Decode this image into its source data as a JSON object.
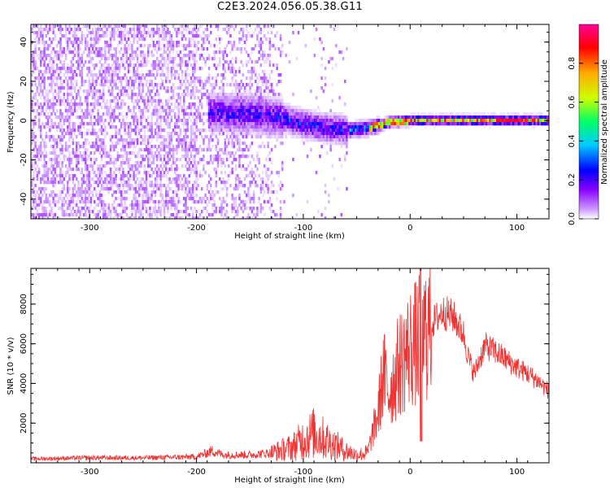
{
  "title": "C2E3.2024.056.05.38.G11",
  "chart_data": [
    {
      "type": "heatmap",
      "xlabel": "Height of straight line (km)",
      "ylabel": "Frequency (Hz)",
      "xlim": [
        -355,
        130
      ],
      "ylim": [
        -50,
        49
      ],
      "xticks": [
        -300,
        -200,
        -100,
        0,
        100
      ],
      "yticks": [
        -40,
        -20,
        0,
        20,
        40
      ],
      "colorbar": {
        "label": "Normalized spectral amplitude",
        "range": [
          0,
          1
        ],
        "ticks": [
          0.0,
          0.2,
          0.4,
          0.6,
          0.8
        ],
        "colormap": [
          "#ffffff",
          "#cc99ff",
          "#8800ff",
          "#0000ff",
          "#00ccff",
          "#00ff66",
          "#ccff00",
          "#ffaa00",
          "#ff0000",
          "#ff0099"
        ]
      },
      "band_center_hz": [
        {
          "x": -180,
          "y": 5
        },
        {
          "x": -140,
          "y": 4
        },
        {
          "x": -120,
          "y": 2
        },
        {
          "x": -100,
          "y": -1
        },
        {
          "x": -80,
          "y": -3
        },
        {
          "x": -60,
          "y": -4
        },
        {
          "x": -40,
          "y": -3
        },
        {
          "x": -20,
          "y": 0
        },
        {
          "x": 0,
          "y": 1
        },
        {
          "x": 50,
          "y": 1
        },
        {
          "x": 100,
          "y": 1
        },
        {
          "x": 130,
          "y": 1
        }
      ]
    },
    {
      "type": "line",
      "xlabel": "Height of straight line (km)",
      "ylabel": "SNR (10 * v/v)",
      "xlim": [
        -355,
        130
      ],
      "ylim": [
        0,
        9800
      ],
      "xticks": [
        -300,
        -200,
        -100,
        0,
        100
      ],
      "yticks": [
        2000,
        4000,
        6000,
        8000
      ],
      "color": "#ee3333",
      "series": [
        {
          "x": [
            -355,
            -300,
            -250,
            -200,
            -185,
            -175,
            -150,
            -130,
            -110,
            -100,
            -90,
            -80,
            -75,
            -70,
            -60,
            -50,
            -40,
            -30,
            -25,
            -20,
            -10,
            0,
            5,
            10,
            15,
            20,
            30,
            40,
            50,
            55,
            60,
            70,
            80,
            90,
            100,
            110,
            120,
            130
          ],
          "y": [
            200,
            250,
            250,
            300,
            600,
            400,
            400,
            500,
            800,
            1200,
            1500,
            1200,
            1000,
            900,
            600,
            400,
            500,
            2500,
            4500,
            3500,
            5000,
            5800,
            6000,
            6200,
            6600,
            7000,
            7600,
            7400,
            6500,
            5200,
            4500,
            5900,
            5600,
            5200,
            4800,
            4500,
            4100,
            3600
          ]
        }
      ]
    }
  ]
}
